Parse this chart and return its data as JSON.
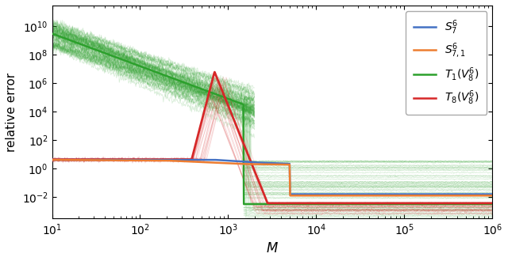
{
  "xlabel": "$M$",
  "ylabel": "relative error",
  "legend_labels": [
    "$S_7^6$",
    "$S_{7,1}^6$",
    "$T_1(V_8^6)$",
    "$T_8(V_8^6)$"
  ],
  "colors": {
    "blue": "#4472c4",
    "orange": "#ed7d31",
    "green": "#2ca02c",
    "red": "#d62728"
  },
  "figsize": [
    6.4,
    3.3
  ],
  "dpi": 100,
  "xlim": [
    10,
    1000000
  ],
  "ylim": [
    0.0003,
    300000000000.0
  ]
}
